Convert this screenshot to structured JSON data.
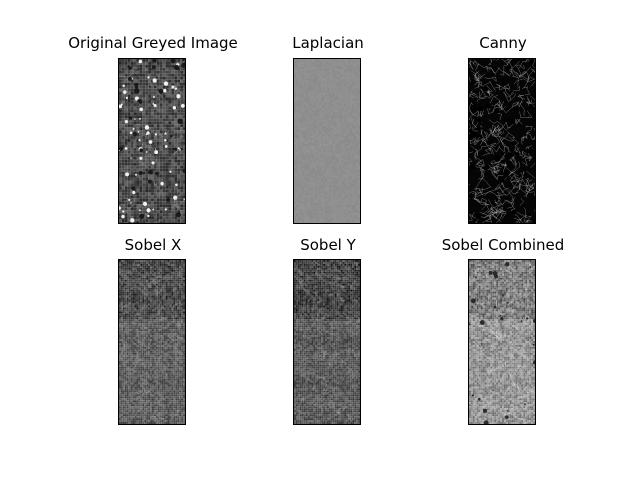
{
  "figure": {
    "panels": [
      {
        "id": "original",
        "title": "Original Greyed Image",
        "style": "original"
      },
      {
        "id": "laplacian",
        "title": "Laplacian",
        "style": "laplacian"
      },
      {
        "id": "canny",
        "title": "Canny",
        "style": "canny"
      },
      {
        "id": "sobel_x",
        "title": "Sobel X",
        "style": "sobelx"
      },
      {
        "id": "sobel_y",
        "title": "Sobel Y",
        "style": "sobely"
      },
      {
        "id": "sobel_combined",
        "title": "Sobel Combined",
        "style": "sobelc"
      }
    ]
  }
}
